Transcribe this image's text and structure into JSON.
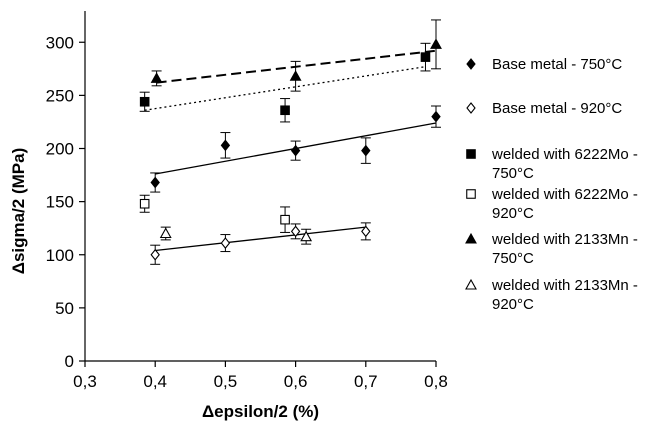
{
  "chart_data": {
    "type": "scatter",
    "xlabel": "Δepsilon/2 (%)",
    "ylabel": "Δsigma/2 (MPa)",
    "xlim": [
      0.3,
      0.8
    ],
    "ylim": [
      0,
      320
    ],
    "x_ticks": [
      "0,3",
      "0,4",
      "0,5",
      "0,6",
      "0,7",
      "0,8"
    ],
    "y_ticks": [
      "0",
      "50",
      "100",
      "150",
      "200",
      "250",
      "300"
    ],
    "grid": false,
    "legend_position": "right",
    "series": [
      {
        "name": "Base metal - 750°C",
        "marker": "diamond",
        "filled": true,
        "points": [
          {
            "x": 0.4,
            "y": 168,
            "err": 9
          },
          {
            "x": 0.5,
            "y": 203,
            "err": 12
          },
          {
            "x": 0.6,
            "y": 198,
            "err": 9
          },
          {
            "x": 0.7,
            "y": 198,
            "err": 12
          },
          {
            "x": 0.8,
            "y": 230,
            "err": 10
          }
        ],
        "trend": {
          "style": "solid",
          "x": [
            0.4,
            0.8
          ],
          "y": [
            176,
            224
          ]
        }
      },
      {
        "name": "Base metal - 920°C",
        "marker": "diamond",
        "filled": false,
        "points": [
          {
            "x": 0.4,
            "y": 100,
            "err": 9
          },
          {
            "x": 0.5,
            "y": 111,
            "err": 8
          },
          {
            "x": 0.6,
            "y": 122,
            "err": 7
          },
          {
            "x": 0.7,
            "y": 122,
            "err": 8
          }
        ],
        "trend": {
          "style": "solid",
          "x": [
            0.4,
            0.7
          ],
          "y": [
            104,
            126
          ]
        }
      },
      {
        "name": "welded with 6222Mo - 750°C",
        "marker": "square",
        "filled": true,
        "points": [
          {
            "x": 0.385,
            "y": 244,
            "err": 9
          },
          {
            "x": 0.585,
            "y": 236,
            "err": 11
          },
          {
            "x": 0.785,
            "y": 286,
            "err": 13
          }
        ],
        "trend": {
          "style": "dotted",
          "x": [
            0.385,
            0.785
          ],
          "y": [
            236,
            277
          ]
        }
      },
      {
        "name": "welded with 6222Mo - 920°C",
        "marker": "square",
        "filled": false,
        "points": [
          {
            "x": 0.385,
            "y": 148,
            "err": 8
          },
          {
            "x": 0.585,
            "y": 133,
            "err": 12
          }
        ]
      },
      {
        "name": "welded with 2133Mn - 750°C",
        "marker": "triangle",
        "filled": true,
        "points": [
          {
            "x": 0.402,
            "y": 266,
            "err": 7
          },
          {
            "x": 0.6,
            "y": 268,
            "err": 14
          },
          {
            "x": 0.8,
            "y": 298,
            "err": 23
          }
        ],
        "trend": {
          "style": "dashed",
          "x": [
            0.402,
            0.8
          ],
          "y": [
            262,
            292
          ]
        }
      },
      {
        "name": "welded with 2133Mn - 920°C",
        "marker": "triangle",
        "filled": false,
        "points": [
          {
            "x": 0.415,
            "y": 120,
            "err": 6
          },
          {
            "x": 0.615,
            "y": 117,
            "err": 7
          }
        ]
      }
    ]
  },
  "legend": {
    "entries": [
      {
        "line1": "Base metal - 750°C",
        "line2": ""
      },
      {
        "line1": "Base metal - 920°C",
        "line2": ""
      },
      {
        "line1": "welded with 6222Mo -",
        "line2": "750°C"
      },
      {
        "line1": "welded with 6222Mo -",
        "line2": "920°C"
      },
      {
        "line1": "welded with 2133Mn -",
        "line2": "750°C"
      },
      {
        "line1": "welded with 2133Mn -",
        "line2": "920°C"
      }
    ]
  }
}
